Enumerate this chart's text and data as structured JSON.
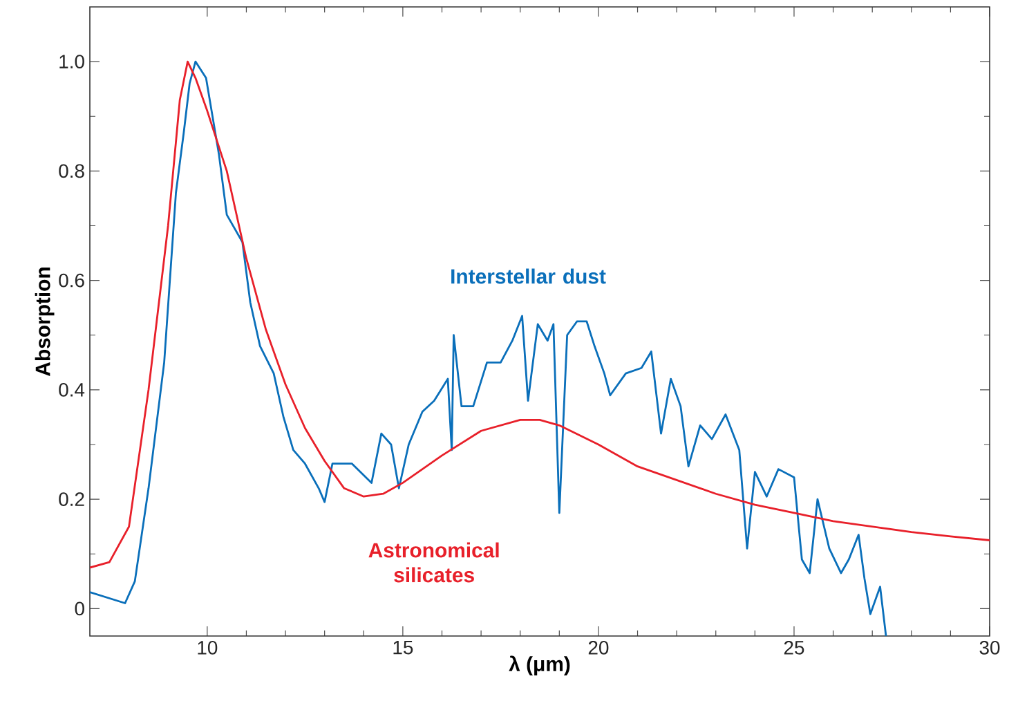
{
  "chart_data": {
    "type": "line",
    "xlabel": "**λ (μm)**",
    "ylabel": "Absorption",
    "xlim": [
      7,
      30
    ],
    "ylim": [
      -0.05,
      1.1
    ],
    "xticks": [
      10,
      15,
      20,
      25,
      30
    ],
    "yticks": [
      0,
      0.2,
      0.4,
      0.6,
      0.8,
      {
        "value": 1,
        "label": "1.0"
      }
    ],
    "grid": false,
    "legend": false,
    "marker": "none",
    "line_style": "solid",
    "series": [
      {
        "name": "Interstellar dust",
        "color": "#0a6fba",
        "x": [
          7.0,
          7.9,
          8.15,
          8.5,
          8.9,
          9.2,
          9.4,
          9.55,
          9.7,
          9.97,
          10.3,
          10.5,
          10.9,
          11.1,
          11.35,
          11.7,
          11.95,
          12.2,
          12.5,
          12.85,
          13.0,
          13.2,
          13.7,
          14.2,
          14.45,
          14.7,
          14.9,
          15.15,
          15.5,
          15.8,
          16.15,
          16.25,
          16.3,
          16.5,
          16.8,
          17.15,
          17.5,
          17.8,
          18.05,
          18.2,
          18.45,
          18.7,
          18.85,
          19.0,
          19.2,
          19.45,
          19.7,
          19.9,
          20.15,
          20.3,
          20.7,
          21.1,
          21.35,
          21.6,
          21.85,
          22.1,
          22.3,
          22.6,
          22.9,
          23.25,
          23.6,
          23.8,
          24.0,
          24.3,
          24.6,
          25.0,
          25.2,
          25.4,
          25.6,
          25.9,
          26.2,
          26.4,
          26.65,
          26.8,
          26.95,
          27.2,
          27.35
        ],
        "values": [
          0.03,
          0.01,
          0.05,
          0.22,
          0.45,
          0.76,
          0.87,
          0.96,
          1.0,
          0.97,
          0.83,
          0.72,
          0.67,
          0.56,
          0.48,
          0.43,
          0.35,
          0.29,
          0.265,
          0.22,
          0.195,
          0.265,
          0.265,
          0.23,
          0.32,
          0.3,
          0.22,
          0.3,
          0.36,
          0.38,
          0.42,
          0.29,
          0.5,
          0.37,
          0.37,
          0.45,
          0.45,
          0.49,
          0.535,
          0.38,
          0.52,
          0.49,
          0.52,
          0.175,
          0.5,
          0.525,
          0.525,
          0.48,
          0.43,
          0.39,
          0.43,
          0.44,
          0.47,
          0.32,
          0.42,
          0.37,
          0.26,
          0.335,
          0.31,
          0.355,
          0.29,
          0.11,
          0.25,
          0.205,
          0.255,
          0.24,
          0.09,
          0.065,
          0.2,
          0.11,
          0.065,
          0.09,
          0.135,
          0.055,
          -0.01,
          0.04,
          -0.05
        ]
      },
      {
        "name": "Astronomical silicates",
        "color": "#e8202a",
        "x": [
          7.0,
          7.5,
          8.0,
          8.5,
          9.0,
          9.3,
          9.5,
          9.7,
          10.0,
          10.5,
          11.0,
          11.5,
          12.0,
          12.5,
          13.0,
          13.5,
          14.0,
          14.5,
          15.0,
          16.0,
          17.0,
          18.0,
          18.5,
          19.0,
          20.0,
          21.0,
          22.0,
          23.0,
          24.0,
          25.0,
          26.0,
          27.0,
          28.0,
          29.0,
          30.0
        ],
        "values": [
          0.075,
          0.085,
          0.15,
          0.4,
          0.7,
          0.93,
          1.0,
          0.97,
          0.91,
          0.8,
          0.64,
          0.51,
          0.41,
          0.33,
          0.27,
          0.22,
          0.205,
          0.21,
          0.23,
          0.28,
          0.325,
          0.345,
          0.345,
          0.335,
          0.3,
          0.26,
          0.235,
          0.21,
          0.19,
          0.175,
          0.16,
          0.15,
          0.14,
          0.132,
          0.125
        ]
      }
    ]
  }
}
